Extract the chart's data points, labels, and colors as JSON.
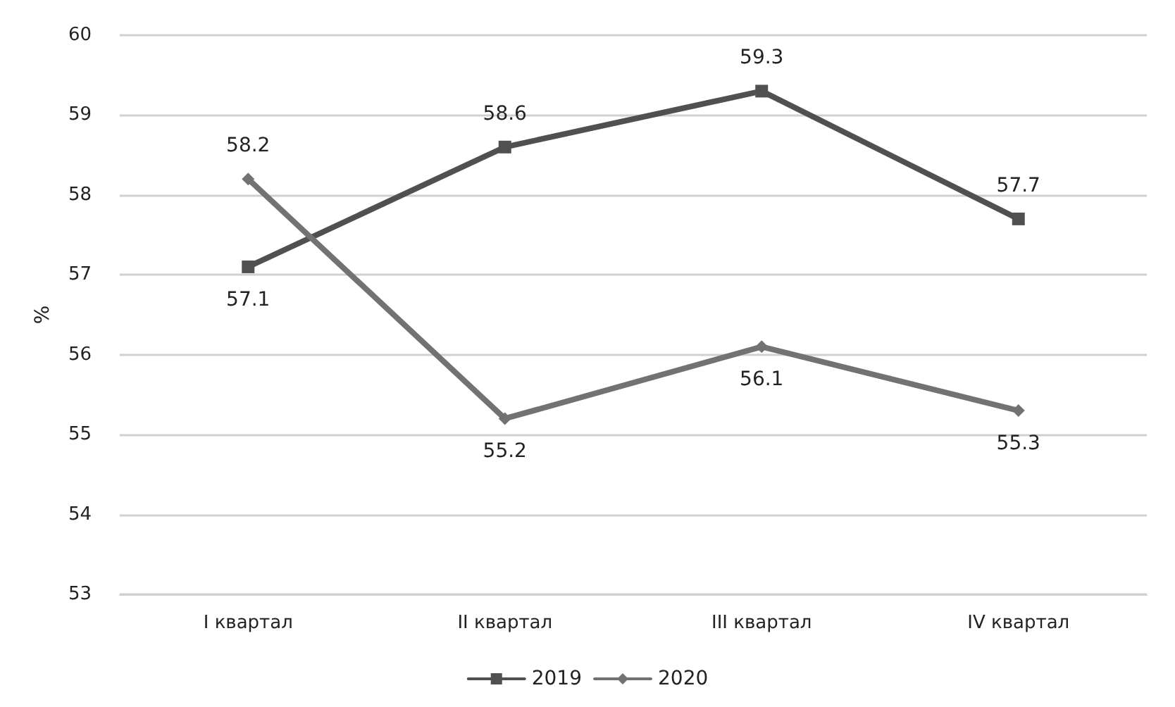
{
  "chart_data": {
    "type": "line",
    "ylabel": "%",
    "categories": [
      "I квартал",
      "II квартал",
      "III квартал",
      "IV квартал"
    ],
    "series": [
      {
        "name": "2019",
        "color": "#505050",
        "marker": "square",
        "values": [
          57.1,
          58.6,
          59.3,
          57.7
        ]
      },
      {
        "name": "2020",
        "color": "#727272",
        "marker": "diamond",
        "values": [
          58.2,
          55.2,
          56.1,
          55.3
        ]
      }
    ],
    "ylim": [
      53,
      60
    ],
    "yticks": [
      53,
      54,
      55,
      56,
      57,
      58,
      59,
      60
    ],
    "grid": "y",
    "legend": "bottom",
    "data_labels": true,
    "line_style": "solid"
  }
}
